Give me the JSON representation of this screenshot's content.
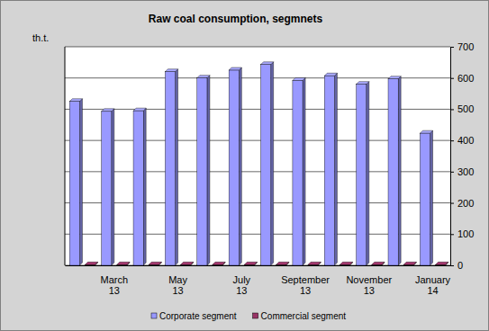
{
  "chart_data": {
    "type": "bar",
    "title": "Raw coal consumption, segmnets",
    "y_label": "th.t.",
    "categories": [
      null,
      "March 13",
      null,
      "May 13",
      null,
      "July 13",
      null,
      "September 13",
      null,
      "November 13",
      null,
      "January 14"
    ],
    "series": [
      {
        "name": "Corporate segment",
        "color": "#9999ff",
        "values": [
          525,
          493,
          495,
          620,
          600,
          625,
          643,
          592,
          607,
          580,
          597,
          423
        ]
      },
      {
        "name": "Commercial segment",
        "color": "#993366",
        "values": [
          2,
          2,
          2,
          2,
          2,
          2,
          2,
          2,
          2,
          2,
          2,
          2
        ]
      }
    ],
    "ylim": [
      0,
      700
    ],
    "yticks": [
      0,
      100,
      200,
      300,
      400,
      500,
      600,
      700
    ],
    "grid": true,
    "legend": "bottom"
  }
}
